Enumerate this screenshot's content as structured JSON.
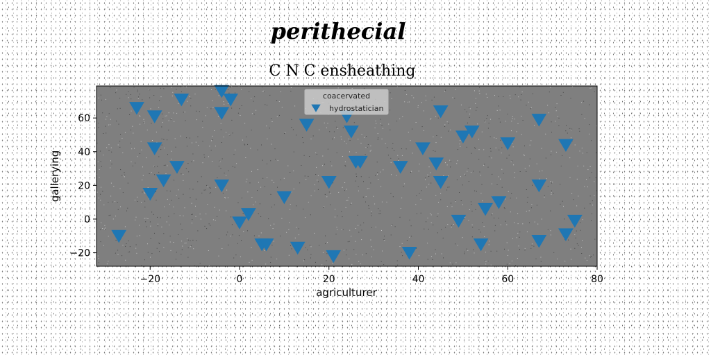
{
  "figure": {
    "suptitle": "perithecial"
  },
  "chart_data": {
    "type": "scatter",
    "title": "C N C ensheathing",
    "xlabel": "agriculturer",
    "ylabel": "gallerying",
    "xlim": [
      -32,
      80
    ],
    "ylim": [
      -28,
      79
    ],
    "xticks": [
      -20,
      0,
      20,
      40,
      60,
      80
    ],
    "yticks": [
      -20,
      0,
      20,
      40,
      60
    ],
    "xtick_labels": [
      "−20",
      "0",
      "20",
      "40",
      "60",
      "80"
    ],
    "ytick_labels": [
      "−20",
      "0",
      "20",
      "40",
      "60"
    ],
    "grid": false,
    "plot_background": "#7f7f7f",
    "legend": {
      "title": "coacervated",
      "placement": "top-center"
    },
    "series": [
      {
        "name": "hydrostatician",
        "marker": "triangle-down",
        "color": "#1f77b4",
        "points": [
          [
            -27,
            -10
          ],
          [
            -23,
            66
          ],
          [
            -20,
            15
          ],
          [
            -19,
            61
          ],
          [
            -19,
            42
          ],
          [
            -17,
            23
          ],
          [
            -14,
            31
          ],
          [
            -13,
            71
          ],
          [
            -4,
            76
          ],
          [
            -4,
            63
          ],
          [
            -4,
            20
          ],
          [
            -2,
            71
          ],
          [
            0,
            -2
          ],
          [
            2,
            3
          ],
          [
            5,
            -15
          ],
          [
            6,
            -15
          ],
          [
            10,
            13
          ],
          [
            13,
            -17
          ],
          [
            15,
            56
          ],
          [
            20,
            22
          ],
          [
            21,
            -22
          ],
          [
            24,
            61
          ],
          [
            25,
            52
          ],
          [
            26,
            34
          ],
          [
            27,
            34
          ],
          [
            36,
            31
          ],
          [
            38,
            -20
          ],
          [
            41,
            42
          ],
          [
            44,
            33
          ],
          [
            45,
            22
          ],
          [
            45,
            64
          ],
          [
            49,
            -1
          ],
          [
            50,
            49
          ],
          [
            52,
            52
          ],
          [
            54,
            -15
          ],
          [
            55,
            6
          ],
          [
            58,
            10
          ],
          [
            60,
            45
          ],
          [
            67,
            59
          ],
          [
            67,
            -13
          ],
          [
            67,
            20
          ],
          [
            73,
            -9
          ],
          [
            73,
            44
          ],
          [
            75,
            -1
          ]
        ]
      }
    ]
  }
}
